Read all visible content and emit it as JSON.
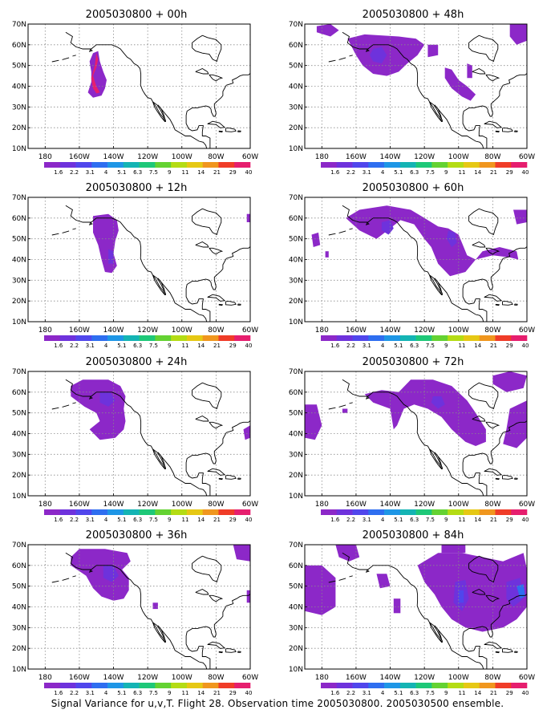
{
  "lat_labels": [
    "70N",
    "60N",
    "50N",
    "40N",
    "30N",
    "20N",
    "10N"
  ],
  "lon_labels": [
    "180",
    "160W",
    "140W",
    "120W",
    "100W",
    "80W",
    "60W"
  ],
  "colorbar": {
    "labels": [
      "1.6",
      "2.2",
      "3.1",
      "4",
      "5.1",
      "6.3",
      "7.5",
      "9",
      "11",
      "14",
      "21",
      "29",
      "40"
    ],
    "colors": [
      "#8c28c8",
      "#6e32dc",
      "#5046ec",
      "#2e6ef0",
      "#1e96e6",
      "#14b4b4",
      "#1ec878",
      "#64d232",
      "#b4dc14",
      "#e6c814",
      "#f0961e",
      "#f03c28",
      "#e61e6e"
    ]
  },
  "panels": [
    {
      "title": "2005030800 + 00h"
    },
    {
      "title": "2005030800 + 48h"
    },
    {
      "title": "2005030800 + 12h"
    },
    {
      "title": "2005030800 + 60h"
    },
    {
      "title": "2005030800 + 24h"
    },
    {
      "title": "2005030800 + 72h"
    },
    {
      "title": "2005030800 + 36h"
    },
    {
      "title": "2005030800 + 84h"
    }
  ],
  "caption": "Signal Variance for u,v,T. Flight 28. Observation time 2005030800. 2005030500 ensemble."
}
